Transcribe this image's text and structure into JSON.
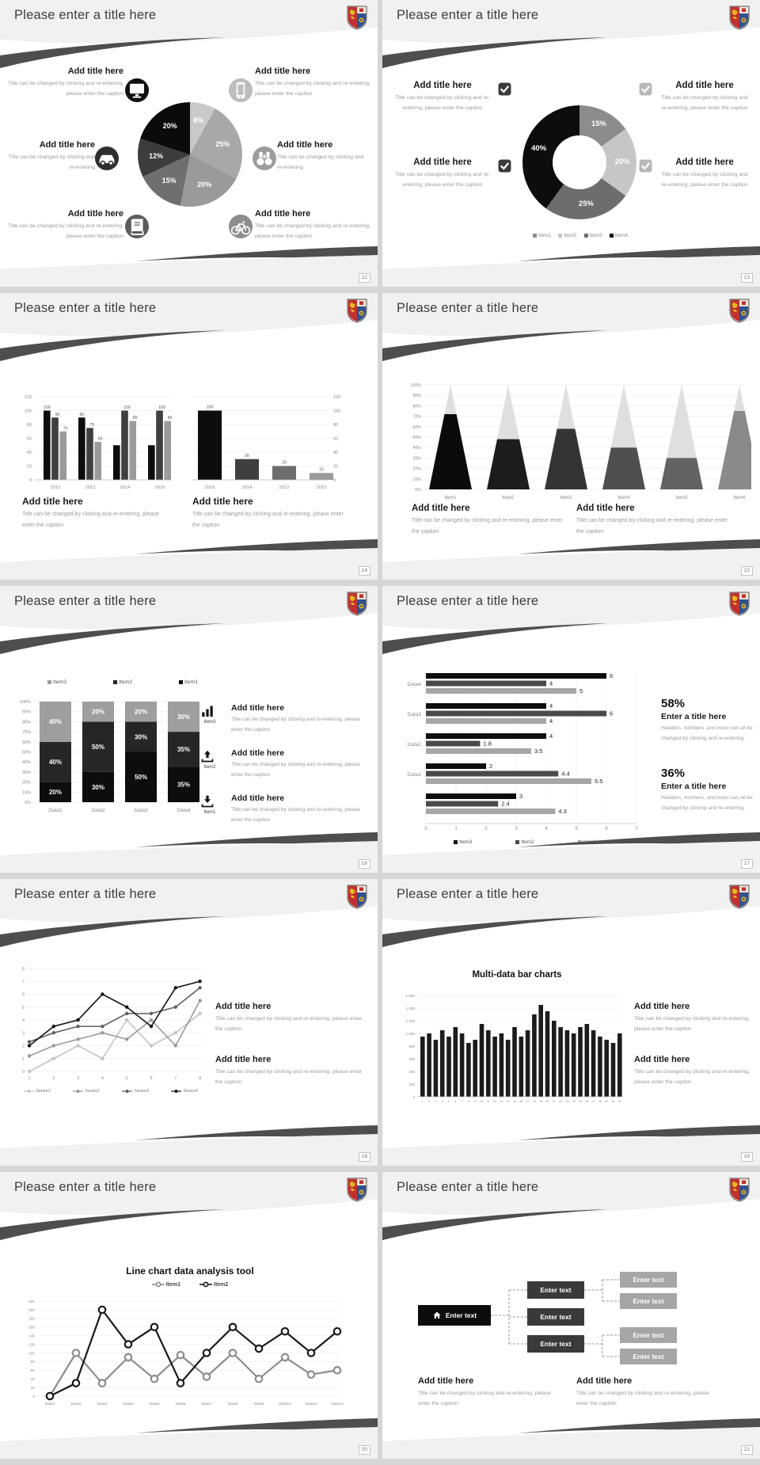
{
  "common": {
    "title": "Please enter a title here",
    "add_title": "Add title here",
    "caption_long": "Title can be changed by clicking and re-entering, please enter the caption",
    "caption_short": "Title can be changed by clicking and re-entering",
    "enter_text": "Enter text",
    "crest": "university-crest",
    "colors": {
      "swoosh": "#4e4e4e",
      "band": "#f1f1f1",
      "accent_black": "#0d0d0d"
    }
  },
  "slides": [
    {
      "page": "12",
      "type": "pie_callouts",
      "chart": 0,
      "blocks": [
        {
          "title": "Add title here",
          "caption": "Title can be changed by clicking and re-entering, please enter the caption",
          "icon": "monitor-icon"
        },
        {
          "title": "Add title here",
          "caption": "Title can be changed by clicking and re-entering",
          "icon": "car-icon"
        },
        {
          "title": "Add title here",
          "caption": "Title can be changed by clicking and re-entering, please enter the caption",
          "icon": "book-icon"
        },
        {
          "title": "Add title here",
          "caption": "Title can be changed by clicking and re-entering, please enter the caption",
          "icon": "phone-icon"
        },
        {
          "title": "Add title here",
          "caption": "Title can be changed by clicking and re-entering",
          "icon": "binoculars-icon"
        },
        {
          "title": "Add title here",
          "caption": "Title can be changed by clicking and re-entering, please enter the caption",
          "icon": "bicycle-icon"
        }
      ]
    },
    {
      "page": "13",
      "type": "donut_callouts",
      "chart": 1,
      "blocks": [
        {
          "title": "Add title here",
          "caption": "Title can be changed by clicking and re-entering, please enter the caption",
          "icon": "checkbox-icon",
          "checkbox": "#3a3a3a"
        },
        {
          "title": "Add title here",
          "caption": "Title can be changed by clicking and re-entering, please enter the caption",
          "icon": "checkbox-icon",
          "checkbox": "#3a3a3a"
        },
        {
          "title": "Add title here",
          "caption": "Title can be changed by clicking and re-entering, please enter the caption",
          "icon": "checkbox-icon",
          "checkbox": "#b8b8b8"
        },
        {
          "title": "Add title here",
          "caption": "Title can be changed by clicking and re-entering, please enter the caption",
          "icon": "checkbox-icon",
          "checkbox": "#b8b8b8"
        }
      ]
    },
    {
      "page": "14",
      "type": "dual_bar",
      "charts": [
        2,
        3
      ],
      "blocks": [
        {
          "title": "Add title here",
          "caption": "Title can be changed by clicking and re-entering, please enter the caption"
        },
        {
          "title": "Add title here",
          "caption": "Title can be changed by clicking and re-entering, please enter the caption"
        }
      ]
    },
    {
      "page": "15",
      "type": "cone",
      "chart": 4,
      "blocks": [
        {
          "title": "Add title here",
          "caption": "Title can be changed by clicking and re-entering, please enter the caption"
        },
        {
          "title": "Add title here",
          "caption": "Title can be changed by clicking and re-entering, please enter the caption"
        }
      ]
    },
    {
      "page": "16",
      "type": "stacked",
      "chart": 5,
      "blocks": [
        {
          "title": "Add title here",
          "caption": "Title can be changed by clicking and re-entering, please enter the caption",
          "icon": "bar-chart-icon",
          "icon_label": "Item3"
        },
        {
          "title": "Add title here",
          "caption": "Title can be changed by clicking and re-entering, please enter the caption",
          "icon": "upload-icon",
          "icon_label": "Item2"
        },
        {
          "title": "Add title here",
          "caption": "Title can be changed by clicking and re-entering, please enter the caption",
          "icon": "download-icon",
          "icon_label": "Item1"
        }
      ]
    },
    {
      "page": "17",
      "type": "hbar",
      "chart": 6,
      "stats": [
        {
          "pct": "58%",
          "title": "Enter a title here",
          "caption": "Headers, numbers, and more can all be changed by clicking and re-entering."
        },
        {
          "pct": "36%",
          "title": "Enter a title here",
          "caption": "Headers, numbers, and more can all be changed by clicking and re-entering."
        }
      ]
    },
    {
      "page": "18",
      "type": "line4",
      "chart": 7,
      "blocks": [
        {
          "title": "Add title here",
          "caption": "Title can be changed by clicking and re-entering, please enter the caption"
        },
        {
          "title": "Add title here",
          "caption": "Title can be changed by clicking and re-entering, please enter the caption"
        }
      ]
    },
    {
      "page": "19",
      "type": "multibar",
      "chart": 8,
      "blocks": [
        {
          "title": "Add title here",
          "caption": "Title can be changed by clicking and re-entering, please enter the caption"
        },
        {
          "title": "Add title here",
          "caption": "Title can be changed by clicking and re-entering, please enter the caption"
        }
      ]
    },
    {
      "page": "20",
      "type": "line2",
      "chart": 9
    },
    {
      "page": "21",
      "type": "org",
      "org": {
        "root": {
          "label": "Enter text",
          "icon": "home-icon"
        },
        "mid": [
          {
            "label": "Enter text"
          },
          {
            "label": "Enter text"
          },
          {
            "label": "Enter text"
          }
        ],
        "leaf": [
          {
            "label": "Enter text"
          },
          {
            "label": "Enter text"
          },
          {
            "label": "Enter text"
          },
          {
            "label": "Enter text"
          }
        ]
      },
      "blocks": [
        {
          "title": "Add title here",
          "caption": "Title can be changed by clicking and re-entering, please enter the caption"
        },
        {
          "title": "Add title here",
          "caption": "Title can be changed by clicking and re-entering, please enter the caption"
        }
      ]
    }
  ],
  "chart_data": [
    {
      "type": "pie",
      "values": [
        8,
        25,
        20,
        15,
        12,
        20
      ],
      "labels": [
        "8%",
        "25%",
        "20%",
        "15%",
        "12%",
        "20%"
      ],
      "colors": [
        "#c9c9c9",
        "#a8a8a8",
        "#9a9a9a",
        "#6f6f6f",
        "#3c3c3c",
        "#0b0b0b"
      ]
    },
    {
      "type": "pie",
      "donut": true,
      "values": [
        15,
        20,
        25,
        40
      ],
      "labels": [
        "15%",
        "20%",
        "25%",
        "40%"
      ],
      "colors": [
        "#8c8c8c",
        "#c6c6c6",
        "#6d6d6d",
        "#0d0d0d"
      ],
      "legend": [
        "Item1",
        "Item2",
        "Item3",
        "Item4"
      ],
      "legend_colors": [
        "#8c8c8c",
        "#c6c6c6",
        "#6d6d6d",
        "#0d0d0d"
      ]
    },
    {
      "type": "bar",
      "categories": [
        "2010",
        "2012",
        "2014",
        "2016"
      ],
      "series": [
        {
          "name": "series1",
          "values": [
            100,
            90,
            50,
            50
          ]
        },
        {
          "name": "series2",
          "values": [
            90,
            75,
            100,
            100
          ]
        },
        {
          "name": "series3",
          "values": [
            70,
            55,
            85,
            85
          ]
        }
      ],
      "value_labels": [
        [
          "100",
          "90",
          "70"
        ],
        [
          "90",
          "75",
          "55"
        ],
        [
          "",
          "100",
          "85"
        ],
        [
          "",
          "100",
          "85"
        ]
      ],
      "colors": [
        "#0d0d0d",
        "#3f3f3f",
        "#9a9a9a"
      ],
      "yticks": [
        "0",
        "20",
        "40",
        "60",
        "80",
        "100",
        "120"
      ],
      "ylim": [
        0,
        120
      ]
    },
    {
      "type": "bar",
      "categories": [
        "2016",
        "2014",
        "2012",
        "2010"
      ],
      "values": [
        100,
        30,
        20,
        10
      ],
      "value_labels": [
        "100",
        "30",
        "20",
        "10"
      ],
      "colors": [
        "#0d0d0d",
        "#3f3f3f",
        "#6d6d6d",
        "#9a9a9a"
      ],
      "yticks": [
        "0",
        "20",
        "40",
        "60",
        "80",
        "100",
        "120"
      ],
      "ylim": [
        0,
        120
      ],
      "axis_side": "right"
    },
    {
      "type": "cone",
      "categories": [
        "Item1",
        "Item2",
        "Item3",
        "Item4",
        "Item5",
        "Item6"
      ],
      "values": [
        72,
        48,
        58,
        40,
        30,
        75
      ],
      "colors": [
        "#0b0b0b",
        "#1c1c1c",
        "#343434",
        "#4f4f4f",
        "#636363",
        "#8a8a8a"
      ],
      "bg_color": "#d9d9d9",
      "yticks": [
        "0%",
        "10%",
        "20%",
        "30%",
        "40%",
        "50%",
        "60%",
        "70%",
        "80%",
        "90%",
        "100%"
      ]
    },
    {
      "type": "stacked_bar",
      "categories": [
        "Data1",
        "Data2",
        "Data3",
        "Data4"
      ],
      "series": [
        {
          "name": "Item1",
          "values": [
            20,
            30,
            50,
            35
          ],
          "labels": [
            "20%",
            "30%",
            "50%",
            "35%"
          ],
          "color": "#0d0d0d"
        },
        {
          "name": "Item2",
          "values": [
            40,
            50,
            30,
            35
          ],
          "labels": [
            "40%",
            "50%",
            "30%",
            "35%"
          ],
          "color": "#262626"
        },
        {
          "name": "Item3",
          "values": [
            40,
            20,
            20,
            30
          ],
          "labels": [
            "40%",
            "20%",
            "20%",
            "30%"
          ],
          "color": "#9e9e9e"
        }
      ],
      "legend": [
        "Item3",
        "Item2",
        "Item1"
      ],
      "legend_colors": [
        "#9e9e9e",
        "#262626",
        "#0d0d0d"
      ],
      "yticks": [
        "0%",
        "10%",
        "20%",
        "30%",
        "40%",
        "50%",
        "60%",
        "70%",
        "80%",
        "90%",
        "100%"
      ]
    },
    {
      "type": "hbar",
      "groups": [
        "Data4",
        "Data3",
        "Data2",
        "Data1",
        ""
      ],
      "values": [
        [
          6,
          4,
          5
        ],
        [
          4,
          6,
          4
        ],
        [
          4,
          1.8,
          3.5
        ],
        [
          2,
          4.4,
          5.5
        ],
        [
          3,
          2.4,
          4.3
        ]
      ],
      "value_labels": [
        [
          "6",
          "4",
          "5"
        ],
        [
          "4",
          "6",
          "4"
        ],
        [
          "4",
          "1.8",
          "3.5"
        ],
        [
          "2",
          "4.4",
          "5.5"
        ],
        [
          "3",
          "2.4",
          "4.3"
        ]
      ],
      "colors": [
        "#0d0d0d",
        "#4a4a4a",
        "#a6a6a6"
      ],
      "legend": [
        "Item3",
        "Item2",
        "Item1"
      ],
      "legend_colors": [
        "#0d0d0d",
        "#4a4a4a",
        "#a6a6a6"
      ],
      "xticks": [
        "0",
        "1",
        "2",
        "3",
        "4",
        "5",
        "6",
        "7"
      ],
      "xlim": [
        0,
        7
      ]
    },
    {
      "type": "line",
      "x": [
        "1",
        "2",
        "3",
        "4",
        "5",
        "6",
        "7",
        "8"
      ],
      "series": [
        {
          "name": "Series1",
          "values": [
            0,
            1,
            2,
            1,
            4,
            2,
            3,
            4.5
          ],
          "color": "#c4c4c4"
        },
        {
          "name": "Series2",
          "values": [
            1.2,
            2,
            2.5,
            3,
            2.5,
            4,
            2,
            5.5
          ],
          "color": "#9a9a9a"
        },
        {
          "name": "Series3",
          "values": [
            2.3,
            3,
            3.5,
            3.5,
            4.5,
            4.5,
            5,
            6.5
          ],
          "color": "#5f5f5f"
        },
        {
          "name": "Series4",
          "values": [
            2,
            3.5,
            4,
            6,
            5,
            3.5,
            6.5,
            7
          ],
          "color": "#111111"
        }
      ],
      "yticks": [
        "0",
        "1",
        "2",
        "3",
        "4",
        "5",
        "6",
        "7",
        "8"
      ],
      "ylim": [
        0,
        8
      ]
    },
    {
      "type": "bar",
      "title": "Multi-data bar charts",
      "x": [
        "1",
        "2",
        "3",
        "4",
        "5",
        "6",
        "7",
        "8",
        "9",
        "10",
        "11",
        "12",
        "13",
        "14",
        "15",
        "16",
        "17",
        "18",
        "19",
        "20",
        "21",
        "22",
        "23",
        "24",
        "25",
        "26",
        "27",
        "28",
        "29",
        "30",
        "31"
      ],
      "values": [
        950,
        1000,
        900,
        1050,
        950,
        1100,
        1000,
        850,
        900,
        1150,
        1050,
        950,
        1000,
        900,
        1100,
        950,
        1050,
        1300,
        1450,
        1350,
        1200,
        1100,
        1050,
        1000,
        1100,
        1150,
        1050,
        950,
        900,
        850,
        1000
      ],
      "color": "#1c1c1c",
      "yticks": [
        "0",
        "200",
        "400",
        "600",
        "800",
        "1,000",
        "1,200",
        "1,400",
        "1,600"
      ],
      "ylim": [
        0,
        1600
      ]
    },
    {
      "type": "line",
      "title": "Line chart data analysis tool",
      "x": [
        "Data1",
        "Data2",
        "Data3",
        "Data4",
        "Data5",
        "Data6",
        "Data7",
        "Data8",
        "Data9",
        "Data10",
        "Data11",
        "Data12"
      ],
      "series": [
        {
          "name": "Item1",
          "values": [
            0,
            100,
            30,
            90,
            40,
            95,
            45,
            100,
            40,
            90,
            50,
            60
          ],
          "color": "#8c8c8c"
        },
        {
          "name": "Item2",
          "values": [
            0,
            30,
            200,
            120,
            160,
            30,
            100,
            160,
            110,
            150,
            100,
            150
          ],
          "color": "#1a1a1a"
        }
      ],
      "yticks": [
        "0",
        "20",
        "40",
        "60",
        "80",
        "100",
        "120",
        "140",
        "160",
        "180",
        "200",
        "220"
      ],
      "ylim": [
        0,
        220
      ]
    }
  ]
}
